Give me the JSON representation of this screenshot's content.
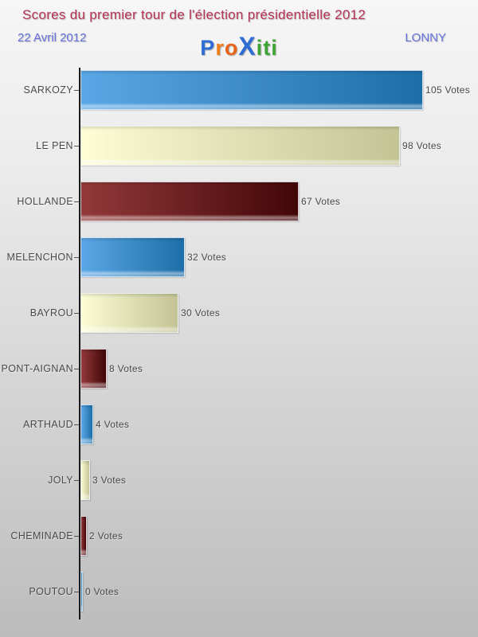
{
  "header": {
    "title": "Scores du premier tour de l'élection présidentielle 2012",
    "date": "22 Avril 2012",
    "location": "LONNY",
    "title_color": "#b73355",
    "subtitle_color": "#6470dd"
  },
  "logo": {
    "name": "Proxiti",
    "letters": [
      {
        "char": "P",
        "color": "#2f6cd4",
        "big": false
      },
      {
        "char": "r",
        "color": "#ee7d1a",
        "big": false
      },
      {
        "char": "o",
        "color": "#e8641a",
        "big": false
      },
      {
        "char": "X",
        "color": "#2f6cd4",
        "big": true
      },
      {
        "char": "i",
        "color": "#3fa435",
        "big": false
      },
      {
        "char": "t",
        "color": "#3fa435",
        "big": false
      },
      {
        "char": "i",
        "color": "#3fa435",
        "big": false
      }
    ]
  },
  "chart_data": {
    "type": "bar",
    "orientation": "horizontal",
    "title": "Scores du premier tour de l'élection présidentielle 2012",
    "categories": [
      "SARKOZY",
      "LE PEN",
      "HOLLANDE",
      "MELENCHON",
      "BAYROU",
      "DUPONT-AIGNAN",
      "ARTHAUD",
      "JOLY",
      "CHEMINADE",
      "POUTOU"
    ],
    "values": [
      105,
      98,
      67,
      32,
      30,
      8,
      4,
      3,
      2,
      0
    ],
    "value_labels": [
      "105 Votes",
      "98 Votes",
      "67 Votes",
      "32 Votes",
      "30 Votes",
      "8 Votes",
      "4 Votes",
      "3 Votes",
      "2 Votes",
      "0 Votes"
    ],
    "unit": "Votes",
    "xlim": [
      0,
      105
    ],
    "grid": false,
    "legend": false,
    "axis_color": "#1a1a1a",
    "label_color": "#4a4a4a",
    "palette": [
      {
        "name": "blue",
        "from": "#5aa7e6",
        "to": "#1d6ea8"
      },
      {
        "name": "cream",
        "from": "#fdfdd6",
        "to": "#c3c394"
      },
      {
        "name": "maroon",
        "from": "#93393a",
        "to": "#420607"
      }
    ]
  }
}
